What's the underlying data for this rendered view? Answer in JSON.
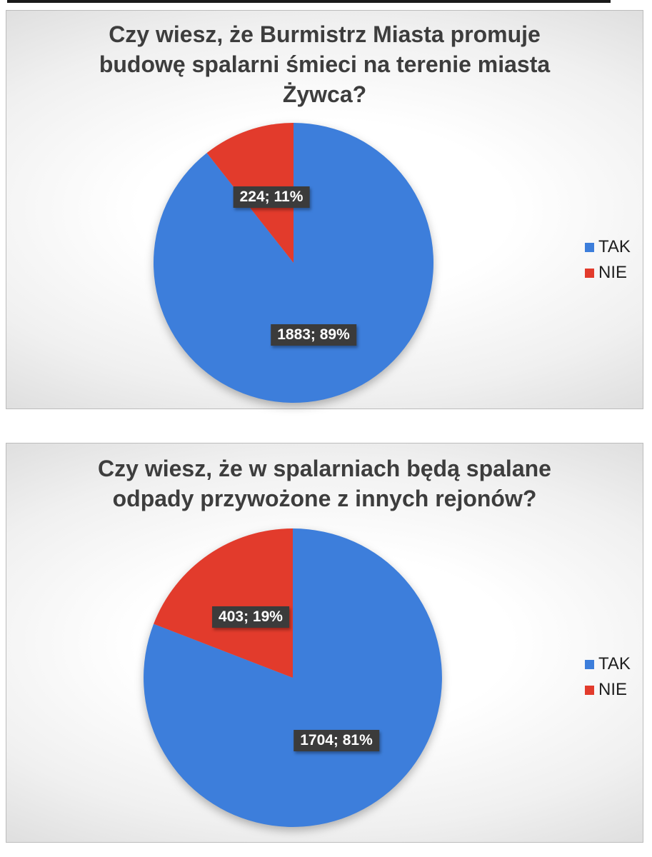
{
  "top_rule_color": "#1a1a1a",
  "chart_data": [
    {
      "type": "pie",
      "title": "Czy wiesz, że Burmistrz Miasta promuje budowę spalarni śmieci na terenie miasta Żywca?",
      "title_lines": [
        "Czy wiesz, że Burmistrz Miasta promuje",
        "budowę spalarni śmieci na terenie miasta",
        "Żywca?"
      ],
      "categories": [
        "TAK",
        "NIE"
      ],
      "values": [
        1883,
        224
      ],
      "slices": [
        {
          "name": "TAK",
          "value": 1883,
          "percent": 89,
          "label": "1883; 89%",
          "color": "#3D7EDB"
        },
        {
          "name": "NIE",
          "value": 224,
          "percent": 11,
          "label": "224; 11%",
          "color": "#E23B2C"
        }
      ],
      "start_angle_deg": 0,
      "direction": "clockwise",
      "legend_position": "right",
      "label_style": {
        "background": "#3B3B3B",
        "text_color": "#FFFFFF"
      }
    },
    {
      "type": "pie",
      "title": "Czy wiesz, że w spalarniach będą spalane odpady przywożone z innych rejonów?",
      "title_lines": [
        "Czy wiesz, że w spalarniach będą spalane",
        "odpady przywożone z innych rejonów?"
      ],
      "categories": [
        "TAK",
        "NIE"
      ],
      "values": [
        1704,
        403
      ],
      "slices": [
        {
          "name": "TAK",
          "value": 1704,
          "percent": 81,
          "label": "1704; 81%",
          "color": "#3D7EDB"
        },
        {
          "name": "NIE",
          "value": 403,
          "percent": 19,
          "label": "403; 19%",
          "color": "#E23B2C"
        }
      ],
      "start_angle_deg": 0,
      "direction": "clockwise",
      "legend_position": "right",
      "label_style": {
        "background": "#3B3B3B",
        "text_color": "#FFFFFF"
      }
    }
  ]
}
